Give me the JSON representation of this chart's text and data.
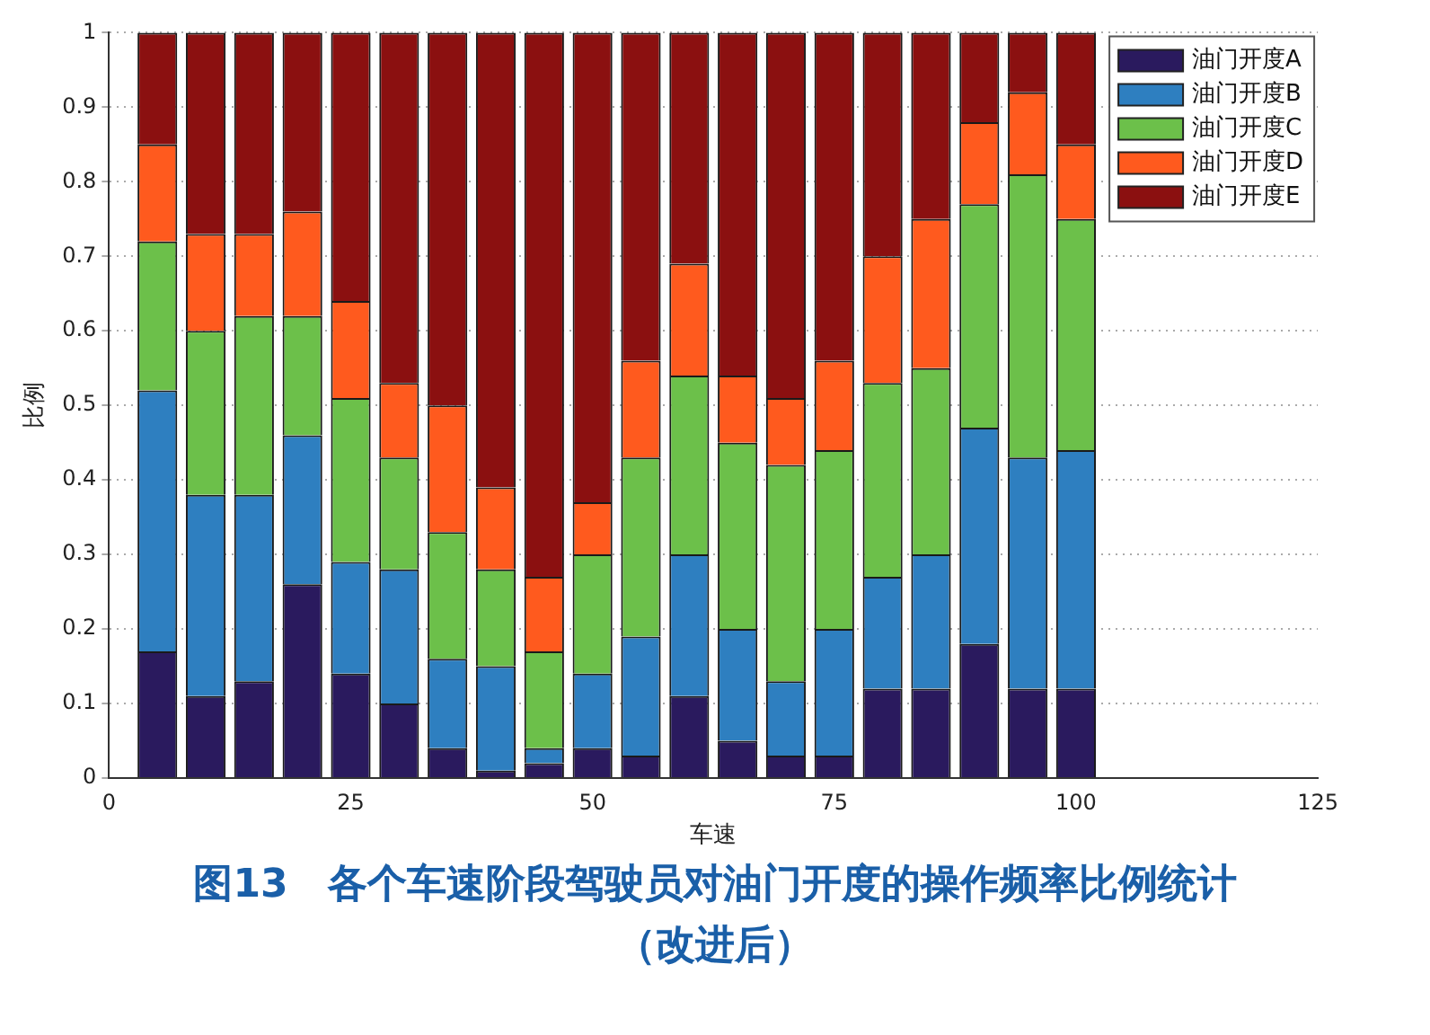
{
  "chart_data": {
    "type": "bar",
    "title": "图13　各个车速阶段驾驶员对油门开度的操作频率比例统计",
    "subtitle": "（改进后）",
    "xlabel": "车速",
    "ylabel": "比例",
    "x": [
      5,
      10,
      15,
      20,
      25,
      30,
      35,
      40,
      45,
      50,
      55,
      60,
      65,
      70,
      75,
      80,
      85,
      90,
      95,
      100
    ],
    "stacked": true,
    "series": [
      {
        "name": "油门开度A",
        "color": "#2a1a5e",
        "values": [
          0.17,
          0.11,
          0.13,
          0.26,
          0.14,
          0.1,
          0.04,
          0.01,
          0.02,
          0.04,
          0.03,
          0.11,
          0.05,
          0.03,
          0.03,
          0.12,
          0.12,
          0.18,
          0.12,
          0.12
        ]
      },
      {
        "name": "油门开度B",
        "color": "#2e7fc0",
        "values": [
          0.35,
          0.27,
          0.25,
          0.2,
          0.15,
          0.18,
          0.12,
          0.14,
          0.02,
          0.1,
          0.16,
          0.19,
          0.15,
          0.1,
          0.17,
          0.15,
          0.18,
          0.29,
          0.31,
          0.32
        ]
      },
      {
        "name": "油门开度C",
        "color": "#6cc04a",
        "values": [
          0.2,
          0.22,
          0.24,
          0.16,
          0.22,
          0.15,
          0.17,
          0.13,
          0.13,
          0.16,
          0.24,
          0.24,
          0.25,
          0.29,
          0.24,
          0.26,
          0.25,
          0.3,
          0.38,
          0.31
        ]
      },
      {
        "name": "油门开度D",
        "color": "#ff5a1e",
        "values": [
          0.13,
          0.13,
          0.11,
          0.14,
          0.13,
          0.1,
          0.17,
          0.11,
          0.1,
          0.07,
          0.13,
          0.15,
          0.09,
          0.09,
          0.12,
          0.17,
          0.2,
          0.11,
          0.11,
          0.1
        ]
      },
      {
        "name": "油门开度E",
        "color": "#8b1010",
        "values": [
          0.15,
          0.27,
          0.27,
          0.24,
          0.36,
          0.47,
          0.5,
          0.61,
          0.73,
          0.63,
          0.44,
          0.31,
          0.46,
          0.49,
          0.44,
          0.3,
          0.25,
          0.12,
          0.08,
          0.15
        ]
      }
    ],
    "xlim": [
      0,
      125
    ],
    "xticks": [
      0,
      25,
      50,
      75,
      100,
      125
    ],
    "ylim": [
      0,
      1
    ],
    "yticks": [
      0,
      0.1,
      0.2,
      0.3,
      0.4,
      0.5,
      0.6,
      0.7,
      0.8,
      0.9,
      1
    ],
    "grid": "y",
    "legend": "top right"
  }
}
